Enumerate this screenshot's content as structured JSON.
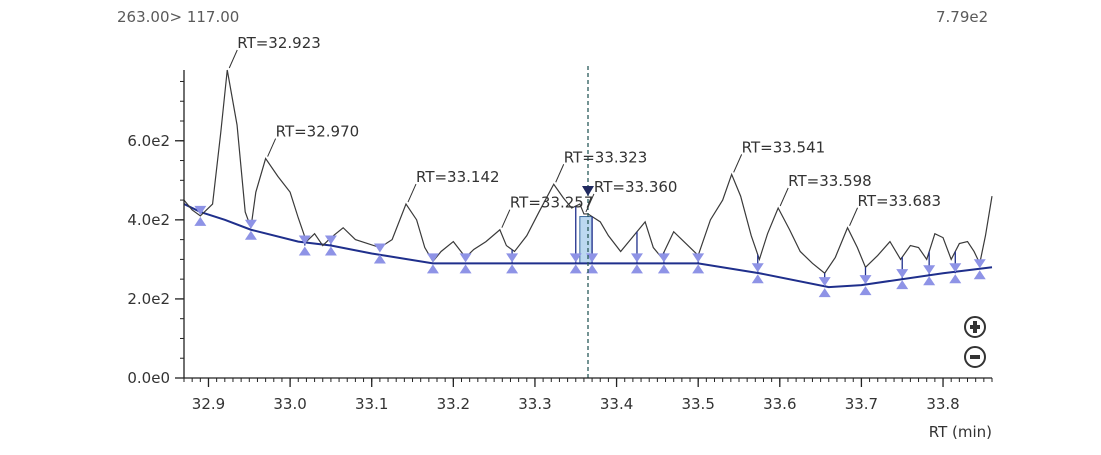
{
  "header": {
    "transition": "263.00> 117.00",
    "max_intensity": "7.79e2"
  },
  "colors": {
    "trace": "#3a3a3a",
    "baseline": "#1f2f8c",
    "marker": "#8e93e6",
    "cursor": "#2a5a5a",
    "highlight": "#bcd8f0"
  },
  "icons": {
    "zoom_in": "plus-circle-icon",
    "zoom_out": "minus-circle-icon"
  },
  "chart_data": {
    "type": "line",
    "xlabel": "RT (min)",
    "ylabel": "",
    "xlim": [
      32.87,
      33.86
    ],
    "ylim": [
      0,
      779
    ],
    "x_ticks": [
      32.9,
      33.0,
      33.1,
      33.2,
      33.3,
      33.4,
      33.5,
      33.6,
      33.7,
      33.8
    ],
    "x_tick_labels": [
      "32.9",
      "33.0",
      "33.1",
      "33.2",
      "33.3",
      "33.4",
      "33.5",
      "33.6",
      "33.7",
      "33.8"
    ],
    "y_ticks": [
      0,
      200,
      400,
      600
    ],
    "y_tick_labels": [
      "0.0e0",
      "2.0e2",
      "4.0e2",
      "6.0e2"
    ],
    "trace": [
      [
        32.87,
        450
      ],
      [
        32.88,
        425
      ],
      [
        32.89,
        410
      ],
      [
        32.905,
        440
      ],
      [
        32.915,
        620
      ],
      [
        32.923,
        779
      ],
      [
        32.935,
        640
      ],
      [
        32.945,
        420
      ],
      [
        32.952,
        380
      ],
      [
        32.958,
        470
      ],
      [
        32.97,
        555
      ],
      [
        32.985,
        510
      ],
      [
        33.0,
        470
      ],
      [
        33.01,
        405
      ],
      [
        33.02,
        345
      ],
      [
        33.03,
        365
      ],
      [
        33.04,
        335
      ],
      [
        33.05,
        355
      ],
      [
        33.065,
        380
      ],
      [
        33.08,
        350
      ],
      [
        33.095,
        340
      ],
      [
        33.11,
        330
      ],
      [
        33.125,
        350
      ],
      [
        33.142,
        440
      ],
      [
        33.155,
        400
      ],
      [
        33.165,
        330
      ],
      [
        33.175,
        295
      ],
      [
        33.185,
        320
      ],
      [
        33.2,
        345
      ],
      [
        33.215,
        305
      ],
      [
        33.225,
        325
      ],
      [
        33.24,
        345
      ],
      [
        33.257,
        375
      ],
      [
        33.265,
        335
      ],
      [
        33.275,
        320
      ],
      [
        33.29,
        360
      ],
      [
        33.305,
        420
      ],
      [
        33.323,
        490
      ],
      [
        33.335,
        455
      ],
      [
        33.345,
        430
      ],
      [
        33.355,
        440
      ],
      [
        33.36,
        415
      ],
      [
        33.365,
        415
      ],
      [
        33.38,
        395
      ],
      [
        33.39,
        360
      ],
      [
        33.405,
        320
      ],
      [
        33.425,
        370
      ],
      [
        33.435,
        395
      ],
      [
        33.445,
        330
      ],
      [
        33.455,
        305
      ],
      [
        33.47,
        370
      ],
      [
        33.485,
        340
      ],
      [
        33.5,
        310
      ],
      [
        33.515,
        400
      ],
      [
        33.53,
        450
      ],
      [
        33.541,
        515
      ],
      [
        33.552,
        460
      ],
      [
        33.565,
        360
      ],
      [
        33.575,
        300
      ],
      [
        33.585,
        365
      ],
      [
        33.598,
        430
      ],
      [
        33.612,
        375
      ],
      [
        33.625,
        320
      ],
      [
        33.64,
        290
      ],
      [
        33.655,
        265
      ],
      [
        33.668,
        305
      ],
      [
        33.683,
        380
      ],
      [
        33.695,
        330
      ],
      [
        33.705,
        280
      ],
      [
        33.72,
        310
      ],
      [
        33.735,
        345
      ],
      [
        33.748,
        300
      ],
      [
        33.76,
        335
      ],
      [
        33.77,
        330
      ],
      [
        33.78,
        300
      ],
      [
        33.79,
        365
      ],
      [
        33.8,
        355
      ],
      [
        33.81,
        300
      ],
      [
        33.82,
        340
      ],
      [
        33.83,
        345
      ],
      [
        33.838,
        320
      ],
      [
        33.845,
        290
      ],
      [
        33.852,
        360
      ],
      [
        33.86,
        460
      ]
    ],
    "baseline": [
      [
        32.87,
        440
      ],
      [
        32.89,
        420
      ],
      [
        32.92,
        400
      ],
      [
        32.952,
        375
      ],
      [
        33.01,
        345
      ],
      [
        33.05,
        335
      ],
      [
        33.1,
        315
      ],
      [
        33.175,
        290
      ],
      [
        33.5,
        290
      ],
      [
        33.575,
        265
      ],
      [
        33.66,
        230
      ],
      [
        33.7,
        235
      ],
      [
        33.8,
        265
      ],
      [
        33.86,
        280
      ]
    ],
    "markers": [
      [
        32.89,
        410
      ],
      [
        32.952,
        375
      ],
      [
        33.018,
        335
      ],
      [
        33.05,
        335
      ],
      [
        33.11,
        315
      ],
      [
        33.175,
        290
      ],
      [
        33.215,
        290
      ],
      [
        33.272,
        290
      ],
      [
        33.35,
        290
      ],
      [
        33.37,
        290
      ],
      [
        33.425,
        290
      ],
      [
        33.458,
        290
      ],
      [
        33.5,
        290
      ],
      [
        33.573,
        265
      ],
      [
        33.655,
        230
      ],
      [
        33.705,
        235
      ],
      [
        33.75,
        250
      ],
      [
        33.783,
        260
      ],
      [
        33.815,
        265
      ],
      [
        33.845,
        275
      ]
    ],
    "cursor_rt": 33.365,
    "highlight_region": [
      33.355,
      33.37
    ],
    "peak_labels": [
      {
        "text": "RT=32.923",
        "rt": 32.923
      },
      {
        "text": "RT=32.970",
        "rt": 32.97
      },
      {
        "text": "RT=33.142",
        "rt": 33.142
      },
      {
        "text": "RT=33.257",
        "rt": 33.257
      },
      {
        "text": "RT=33.323",
        "rt": 33.323
      },
      {
        "text": "RT=33.360",
        "rt": 33.36
      },
      {
        "text": "RT=33.541",
        "rt": 33.541
      },
      {
        "text": "RT=33.598",
        "rt": 33.598
      },
      {
        "text": "RT=33.683",
        "rt": 33.683
      }
    ]
  }
}
